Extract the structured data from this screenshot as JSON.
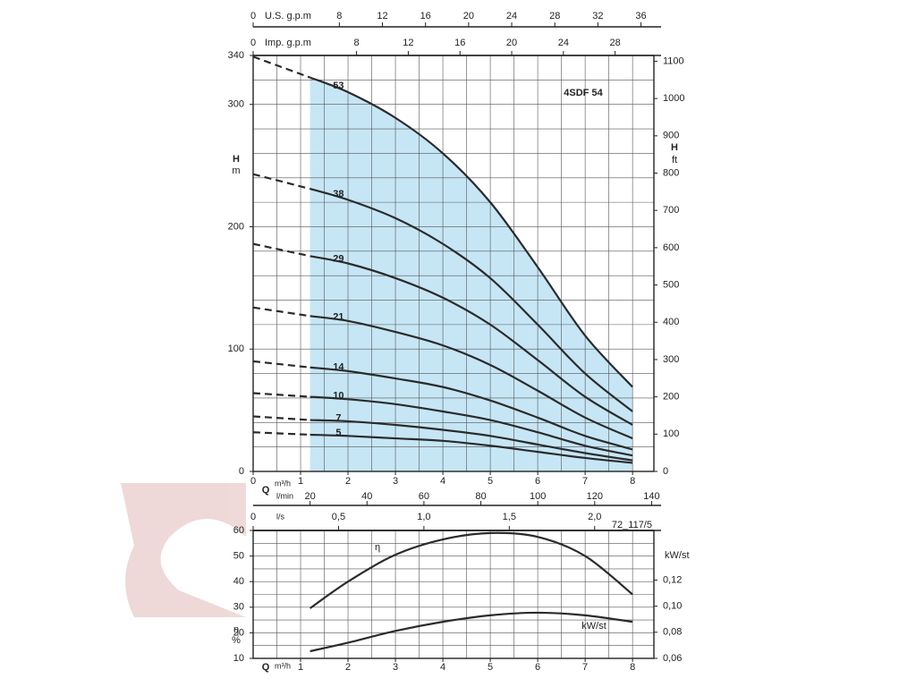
{
  "chart_data": [
    {
      "type": "line",
      "title": "4SDF 54",
      "x": [
        0,
        1.2,
        2,
        3,
        4,
        5,
        6,
        7,
        8
      ],
      "xlabel": "Q",
      "xunit": "m³/h",
      "xlim": [
        0,
        8.45
      ],
      "xticks": [
        0,
        1,
        2,
        3,
        4,
        5,
        6,
        7,
        8
      ],
      "ylabel": "H",
      "yunit": "m",
      "ylim": [
        0,
        340
      ],
      "yticks": [
        0,
        100,
        200,
        300,
        340
      ],
      "y2label": "H",
      "y2unit": "ft",
      "y2lim": [
        0,
        1115.5
      ],
      "y2ticks": [
        0,
        100,
        200,
        300,
        400,
        500,
        600,
        700,
        800,
        900,
        1000,
        1100
      ],
      "x_axes": [
        {
          "label": "U.S. g.p.m",
          "position": "top",
          "lim": [
            0,
            37.2
          ],
          "ticks": [
            0,
            8,
            12,
            16,
            20,
            24,
            28,
            32,
            36
          ]
        },
        {
          "label": "Imp. g.p.m",
          "position": "top",
          "lim": [
            0,
            31.0
          ],
          "ticks": [
            0,
            8,
            12,
            16,
            20,
            24,
            28
          ]
        },
        {
          "label": "l/min",
          "position": "bottom",
          "lim": [
            0,
            140.8
          ],
          "ticks": [
            20,
            40,
            60,
            80,
            100,
            120,
            140
          ]
        },
        {
          "label": "l/s",
          "position": "bottom",
          "lim": [
            0,
            2.347
          ],
          "ticks": [
            0,
            {
              "value": 0.5,
              "label": "0,5"
            },
            {
              "value": 1.0,
              "label": "1,0"
            },
            {
              "value": 1.5,
              "label": "1,5"
            },
            {
              "value": 2.0,
              "label": "2,0"
            }
          ]
        }
      ],
      "operating_range": [
        1.2,
        8
      ],
      "shade_color": "#c6e6f6",
      "grid": true,
      "series": [
        {
          "name": "53",
          "color": "#2b2b2b",
          "values": [
            339,
            322,
            310,
            289,
            260,
            220,
            167,
            111,
            69
          ]
        },
        {
          "name": "38",
          "color": "#2b2b2b",
          "values": [
            243,
            231,
            222,
            207,
            186,
            158,
            120,
            80,
            49
          ]
        },
        {
          "name": "29",
          "color": "#2b2b2b",
          "values": [
            186,
            176,
            170,
            158,
            142,
            120,
            91,
            61,
            38
          ]
        },
        {
          "name": "21",
          "color": "#2b2b2b",
          "values": [
            134,
            127,
            123,
            114,
            103,
            87,
            66,
            44,
            27
          ]
        },
        {
          "name": "14",
          "color": "#2b2b2b",
          "values": [
            90,
            85,
            82,
            76,
            69,
            58,
            44,
            29,
            18
          ]
        },
        {
          "name": "10",
          "color": "#2b2b2b",
          "values": [
            64,
            61,
            59,
            55,
            49,
            42,
            32,
            21,
            13
          ]
        },
        {
          "name": "7",
          "color": "#2b2b2b",
          "values": [
            45,
            42,
            41,
            38,
            34,
            29,
            22,
            15,
            9
          ]
        },
        {
          "name": "5",
          "color": "#2b2b2b",
          "values": [
            32,
            30,
            29,
            27,
            25,
            21,
            16,
            11,
            7
          ]
        }
      ]
    },
    {
      "type": "line",
      "x": [
        1.2,
        2,
        3,
        4,
        5,
        6,
        7,
        8
      ],
      "xlabel": "Q",
      "xunit": "m³/h",
      "xlim": [
        0,
        8.45
      ],
      "xticks": [
        1,
        2,
        3,
        4,
        5,
        6,
        7,
        8
      ],
      "ylabel": "η",
      "yunit": "%",
      "ylim": [
        10,
        60
      ],
      "yticks": [
        10,
        20,
        30,
        40,
        50,
        60
      ],
      "y2label": "kW/st",
      "y2lim": [
        0.06,
        0.158
      ],
      "y2ticks": [
        {
          "value": 0.06,
          "label": "0,06"
        },
        {
          "value": 0.08,
          "label": "0,08"
        },
        {
          "value": 0.1,
          "label": "0,10"
        },
        {
          "value": 0.12,
          "label": "0,12"
        }
      ],
      "grid": true,
      "note": "72_117/5",
      "series": [
        {
          "name": "η",
          "color": "#2b2b2b",
          "values": [
            29.6,
            40,
            50.5,
            56.5,
            59,
            57.5,
            50,
            35
          ]
        },
        {
          "name": "kW/st",
          "color": "#2b2b2b",
          "axis": "y2",
          "values": [
            0.0655,
            0.072,
            0.081,
            0.088,
            0.093,
            0.095,
            0.093,
            0.088
          ]
        }
      ]
    }
  ]
}
